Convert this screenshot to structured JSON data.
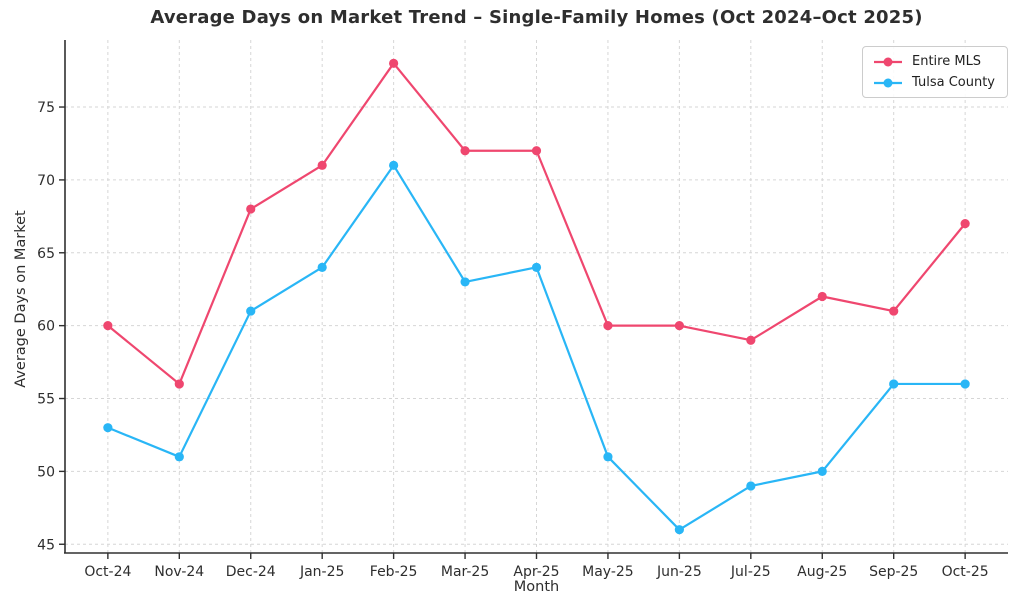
{
  "chart_data": {
    "type": "line",
    "title": "Average Days on Market Trend – Single-Family Homes (Oct 2024–Oct 2025)",
    "xlabel": "Month",
    "ylabel": "Average Days on Market",
    "categories": [
      "Oct-24",
      "Nov-24",
      "Dec-24",
      "Jan-25",
      "Feb-25",
      "Mar-25",
      "Apr-25",
      "May-25",
      "Jun-25",
      "Jul-25",
      "Aug-25",
      "Sep-25",
      "Oct-25"
    ],
    "series": [
      {
        "name": "Entire MLS",
        "color": "#EF476F",
        "values": [
          60,
          56,
          68,
          71,
          78,
          72,
          72,
          60,
          60,
          59,
          62,
          61,
          67
        ]
      },
      {
        "name": "Tulsa County",
        "color": "#29B6F6",
        "values": [
          53,
          51,
          61,
          64,
          71,
          63,
          64,
          51,
          46,
          49,
          50,
          56,
          56
        ]
      }
    ],
    "yticks": [
      45,
      50,
      55,
      60,
      65,
      70,
      75
    ],
    "ylim": [
      44.4,
      79.6
    ],
    "xlim_index": [
      -0.6,
      12.6
    ],
    "grid": true,
    "legend_position": "upper right",
    "axis_color": "#303030",
    "grid_color": "#d6d6d6"
  }
}
